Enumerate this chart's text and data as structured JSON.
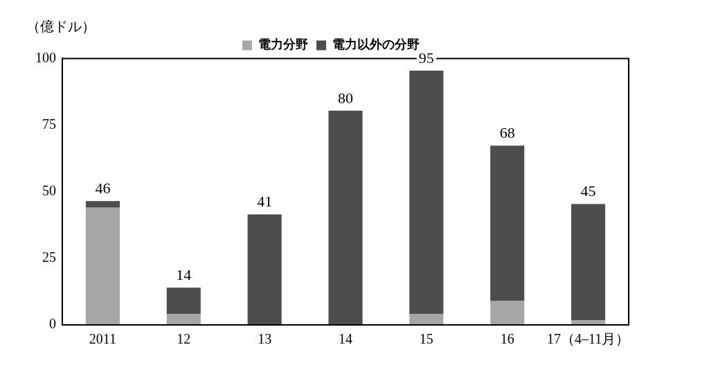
{
  "chart_data": {
    "type": "bar",
    "ylabel": "（億ドル）",
    "categories": [
      "2011",
      "12",
      "13",
      "14",
      "15",
      "16",
      "17（4–11月）"
    ],
    "stacked": true,
    "series": [
      {
        "name": "電力分野",
        "color": "#a6a6a6",
        "values": [
          44,
          4,
          0,
          0,
          4,
          9,
          1.8
        ]
      },
      {
        "name": "電力以外の分野",
        "color": "#4d4d4d",
        "values": [
          2.5,
          10,
          41.5,
          80.4,
          91.4,
          58.3,
          43.6
        ]
      }
    ],
    "totals": [
      "46",
      "14",
      "41",
      "80",
      "95",
      "68",
      "45"
    ],
    "ylim": [
      0,
      100
    ],
    "yticks": [
      0,
      25,
      50,
      75,
      100
    ],
    "grid": false,
    "legend": "top"
  }
}
